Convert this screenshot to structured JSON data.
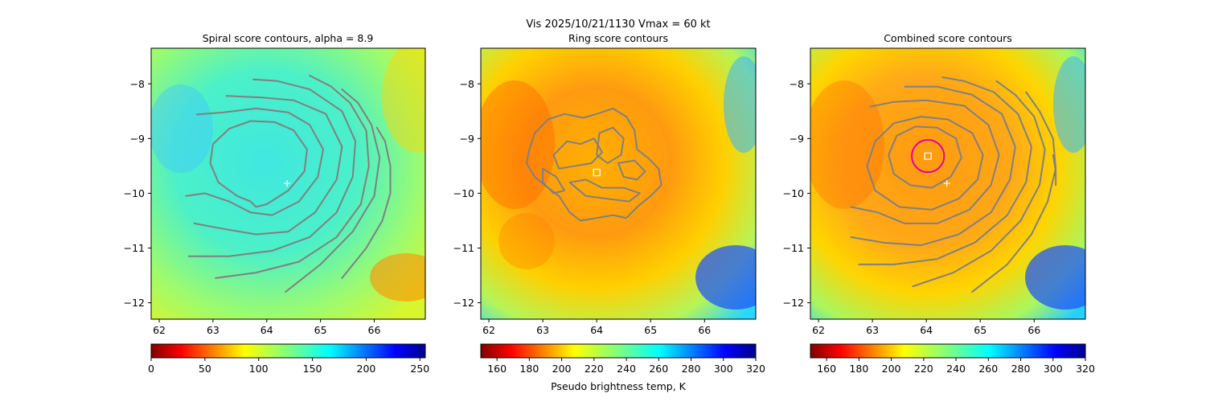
{
  "figure": {
    "suptitle": "Vis  2025/10/21/1130    Vmax = 60 kt",
    "colorbar_label": "Pseudo brightness temp, K"
  },
  "colors": {
    "contour": "#808080",
    "marker": "#ffffff",
    "ring_circle": "#e6009a"
  },
  "chart_data": [
    {
      "type": "heatmap",
      "title": "Spiral score contours, alpha =  8.9",
      "xlim": [
        61.85,
        66.95
      ],
      "ylim": [
        -12.3,
        -7.35
      ],
      "xticks": [
        62,
        63,
        64,
        65,
        66
      ],
      "yticks": [
        -8,
        -9,
        -10,
        -11,
        -12
      ],
      "grid": false,
      "colorbar": {
        "min": 0,
        "max": 255,
        "ticks": [
          0,
          50,
          100,
          150,
          200,
          250
        ],
        "colormap": "jet_r"
      },
      "markers": [
        {
          "shape": "plus",
          "x": 64.38,
          "y": -9.82
        }
      ],
      "contours": [
        [
          [
            63.7,
            -10.15
          ],
          [
            63.45,
            -10.05
          ],
          [
            63.1,
            -9.8
          ],
          [
            62.95,
            -9.45
          ],
          [
            63.0,
            -9.1
          ],
          [
            63.3,
            -8.82
          ],
          [
            63.7,
            -8.68
          ],
          [
            64.15,
            -8.7
          ],
          [
            64.5,
            -8.85
          ],
          [
            64.75,
            -9.2
          ],
          [
            64.7,
            -9.6
          ],
          [
            64.4,
            -9.95
          ],
          [
            64.0,
            -10.2
          ],
          [
            63.8,
            -10.25
          ],
          [
            63.7,
            -10.15
          ]
        ],
        [
          [
            62.5,
            -10.05
          ],
          [
            62.85,
            -10.0
          ],
          [
            63.3,
            -10.15
          ],
          [
            63.7,
            -10.35
          ],
          [
            64.1,
            -10.4
          ],
          [
            64.6,
            -10.15
          ],
          [
            64.95,
            -9.7
          ],
          [
            65.05,
            -9.2
          ],
          [
            64.8,
            -8.75
          ],
          [
            64.4,
            -8.52
          ],
          [
            63.8,
            -8.45
          ],
          [
            63.2,
            -8.52
          ],
          [
            62.7,
            -8.56
          ]
        ],
        [
          [
            62.65,
            -10.55
          ],
          [
            63.2,
            -10.65
          ],
          [
            63.8,
            -10.75
          ],
          [
            64.4,
            -10.7
          ],
          [
            64.9,
            -10.35
          ],
          [
            65.3,
            -9.75
          ],
          [
            65.4,
            -9.15
          ],
          [
            65.1,
            -8.55
          ],
          [
            64.5,
            -8.3
          ],
          [
            63.9,
            -8.25
          ],
          [
            63.25,
            -8.22
          ]
        ],
        [
          [
            62.55,
            -11.15
          ],
          [
            63.3,
            -11.15
          ],
          [
            64.1,
            -11.05
          ],
          [
            64.8,
            -10.8
          ],
          [
            65.3,
            -10.35
          ],
          [
            65.6,
            -9.7
          ],
          [
            65.65,
            -9.05
          ],
          [
            65.4,
            -8.5
          ],
          [
            64.8,
            -8.1
          ],
          [
            64.2,
            -7.95
          ],
          [
            63.75,
            -7.92
          ]
        ],
        [
          [
            63.05,
            -11.55
          ],
          [
            63.8,
            -11.45
          ],
          [
            64.6,
            -11.25
          ],
          [
            65.3,
            -10.8
          ],
          [
            65.75,
            -10.2
          ],
          [
            65.9,
            -9.5
          ],
          [
            65.85,
            -8.85
          ],
          [
            65.55,
            -8.35
          ],
          [
            65.2,
            -8.05
          ],
          [
            64.8,
            -7.85
          ]
        ],
        [
          [
            64.35,
            -11.8
          ],
          [
            65.0,
            -11.3
          ],
          [
            65.6,
            -10.7
          ],
          [
            66.0,
            -10.05
          ],
          [
            66.1,
            -9.35
          ],
          [
            65.95,
            -8.75
          ],
          [
            65.7,
            -8.35
          ],
          [
            65.4,
            -8.1
          ]
        ],
        [
          [
            65.4,
            -11.55
          ],
          [
            65.85,
            -11.0
          ],
          [
            66.15,
            -10.5
          ],
          [
            66.3,
            -10.0
          ],
          [
            66.3,
            -9.5
          ],
          [
            66.2,
            -9.05
          ],
          [
            66.05,
            -8.8
          ]
        ]
      ],
      "ring_circle": null,
      "square_marker": null
    },
    {
      "type": "heatmap",
      "title": "Ring score contours",
      "xlim": [
        61.85,
        66.95
      ],
      "ylim": [
        -12.3,
        -7.35
      ],
      "xticks": [
        62,
        63,
        64,
        65,
        66
      ],
      "yticks": [
        -8,
        -9,
        -10,
        -11,
        -12
      ],
      "grid": false,
      "colorbar": {
        "min": 150,
        "max": 320,
        "ticks": [
          160,
          180,
          200,
          220,
          240,
          260,
          280,
          300,
          320
        ],
        "colormap": "jet_r"
      },
      "markers": [],
      "square_marker": {
        "x": 64.0,
        "y": -9.62
      },
      "ring_circle": null,
      "contours": [
        [
          [
            62.75,
            -9.2
          ],
          [
            62.85,
            -8.9
          ],
          [
            63.1,
            -8.65
          ],
          [
            63.4,
            -8.55
          ],
          [
            63.75,
            -8.62
          ],
          [
            64.0,
            -8.55
          ],
          [
            64.3,
            -8.45
          ],
          [
            64.55,
            -8.6
          ],
          [
            64.7,
            -8.85
          ],
          [
            64.75,
            -9.2
          ],
          [
            64.95,
            -9.35
          ],
          [
            65.15,
            -9.55
          ],
          [
            65.2,
            -9.85
          ],
          [
            65.0,
            -10.05
          ],
          [
            64.75,
            -10.25
          ],
          [
            64.55,
            -10.45
          ],
          [
            64.3,
            -10.4
          ],
          [
            64.0,
            -10.45
          ],
          [
            63.7,
            -10.5
          ],
          [
            63.5,
            -10.35
          ],
          [
            63.3,
            -10.05
          ],
          [
            63.1,
            -9.9
          ],
          [
            62.85,
            -9.7
          ],
          [
            62.7,
            -9.45
          ],
          [
            62.75,
            -9.2
          ]
        ],
        [
          [
            63.2,
            -9.3
          ],
          [
            63.45,
            -9.05
          ],
          [
            63.7,
            -9.1
          ],
          [
            63.95,
            -9.0
          ],
          [
            64.1,
            -9.25
          ],
          [
            63.9,
            -9.45
          ],
          [
            63.6,
            -9.5
          ],
          [
            63.3,
            -9.55
          ],
          [
            63.2,
            -9.3
          ]
        ],
        [
          [
            64.05,
            -8.9
          ],
          [
            64.3,
            -8.8
          ],
          [
            64.5,
            -9.0
          ],
          [
            64.45,
            -9.3
          ],
          [
            64.2,
            -9.45
          ],
          [
            64.0,
            -9.3
          ],
          [
            64.05,
            -8.9
          ]
        ],
        [
          [
            63.5,
            -9.8
          ],
          [
            63.8,
            -9.75
          ],
          [
            64.1,
            -9.9
          ],
          [
            64.5,
            -9.9
          ],
          [
            64.8,
            -10.0
          ],
          [
            64.6,
            -10.15
          ],
          [
            64.2,
            -10.1
          ],
          [
            63.8,
            -10.05
          ],
          [
            63.5,
            -9.8
          ]
        ],
        [
          [
            64.4,
            -9.45
          ],
          [
            64.7,
            -9.4
          ],
          [
            64.9,
            -9.6
          ],
          [
            64.75,
            -9.75
          ],
          [
            64.5,
            -9.7
          ],
          [
            64.4,
            -9.45
          ]
        ],
        [
          [
            63.0,
            -9.55
          ],
          [
            63.25,
            -9.7
          ],
          [
            63.4,
            -9.95
          ],
          [
            63.2,
            -10.0
          ],
          [
            63.0,
            -9.8
          ],
          [
            63.0,
            -9.55
          ]
        ]
      ]
    },
    {
      "type": "heatmap",
      "title": "Combined score contours",
      "xlim": [
        61.85,
        66.95
      ],
      "ylim": [
        -12.3,
        -7.35
      ],
      "xticks": [
        62,
        63,
        64,
        65,
        66
      ],
      "yticks": [
        -8,
        -9,
        -10,
        -11,
        -12
      ],
      "grid": false,
      "colorbar": {
        "min": 150,
        "max": 320,
        "ticks": [
          160,
          180,
          200,
          220,
          240,
          260,
          280,
          300,
          320
        ],
        "colormap": "jet_r"
      },
      "markers": [
        {
          "shape": "plus",
          "x": 64.38,
          "y": -9.82
        }
      ],
      "square_marker": {
        "x": 64.03,
        "y": -9.32
      },
      "ring_circle": {
        "x": 64.03,
        "y": -9.32,
        "radius_deg": 0.3
      },
      "contours": [
        [
          [
            63.7,
            -9.85
          ],
          [
            63.4,
            -9.65
          ],
          [
            63.3,
            -9.3
          ],
          [
            63.45,
            -8.95
          ],
          [
            63.8,
            -8.78
          ],
          [
            64.2,
            -8.8
          ],
          [
            64.55,
            -9.0
          ],
          [
            64.65,
            -9.35
          ],
          [
            64.45,
            -9.7
          ],
          [
            64.1,
            -9.9
          ],
          [
            63.7,
            -9.85
          ]
        ],
        [
          [
            63.5,
            -10.25
          ],
          [
            63.05,
            -9.95
          ],
          [
            62.9,
            -9.5
          ],
          [
            63.05,
            -9.05
          ],
          [
            63.4,
            -8.72
          ],
          [
            63.9,
            -8.6
          ],
          [
            64.4,
            -8.65
          ],
          [
            64.85,
            -8.9
          ],
          [
            65.05,
            -9.3
          ],
          [
            64.95,
            -9.75
          ],
          [
            64.6,
            -10.1
          ],
          [
            64.1,
            -10.3
          ],
          [
            63.5,
            -10.25
          ]
        ],
        [
          [
            62.6,
            -10.25
          ],
          [
            63.1,
            -10.35
          ],
          [
            63.6,
            -10.55
          ],
          [
            64.2,
            -10.55
          ],
          [
            64.8,
            -10.3
          ],
          [
            65.2,
            -9.85
          ],
          [
            65.35,
            -9.3
          ],
          [
            65.15,
            -8.75
          ],
          [
            64.7,
            -8.4
          ],
          [
            64.0,
            -8.3
          ],
          [
            63.4,
            -8.33
          ],
          [
            62.95,
            -8.42
          ]
        ],
        [
          [
            62.6,
            -10.8
          ],
          [
            63.2,
            -10.9
          ],
          [
            63.9,
            -10.95
          ],
          [
            64.6,
            -10.75
          ],
          [
            65.2,
            -10.35
          ],
          [
            65.55,
            -9.75
          ],
          [
            65.65,
            -9.15
          ],
          [
            65.4,
            -8.55
          ],
          [
            64.85,
            -8.2
          ],
          [
            64.2,
            -8.05
          ],
          [
            63.6,
            -8.05
          ]
        ],
        [
          [
            62.75,
            -11.3
          ],
          [
            63.4,
            -11.3
          ],
          [
            64.2,
            -11.2
          ],
          [
            64.9,
            -10.9
          ],
          [
            65.5,
            -10.4
          ],
          [
            65.85,
            -9.8
          ],
          [
            65.95,
            -9.15
          ],
          [
            65.7,
            -8.55
          ],
          [
            65.25,
            -8.15
          ],
          [
            64.7,
            -7.95
          ],
          [
            64.3,
            -7.88
          ]
        ],
        [
          [
            63.75,
            -11.7
          ],
          [
            64.5,
            -11.45
          ],
          [
            65.2,
            -11.05
          ],
          [
            65.75,
            -10.5
          ],
          [
            66.1,
            -9.85
          ],
          [
            66.2,
            -9.2
          ],
          [
            66.0,
            -8.6
          ],
          [
            65.65,
            -8.2
          ],
          [
            65.3,
            -7.95
          ]
        ],
        [
          [
            64.85,
            -11.8
          ],
          [
            65.5,
            -11.3
          ],
          [
            65.95,
            -10.75
          ],
          [
            66.25,
            -10.15
          ],
          [
            66.4,
            -9.55
          ],
          [
            66.35,
            -9.0
          ],
          [
            66.1,
            -8.5
          ],
          [
            65.85,
            -8.15
          ]
        ],
        [
          [
            66.35,
            -9.3
          ],
          [
            66.4,
            -9.6
          ],
          [
            66.4,
            -9.85
          ]
        ]
      ]
    }
  ]
}
